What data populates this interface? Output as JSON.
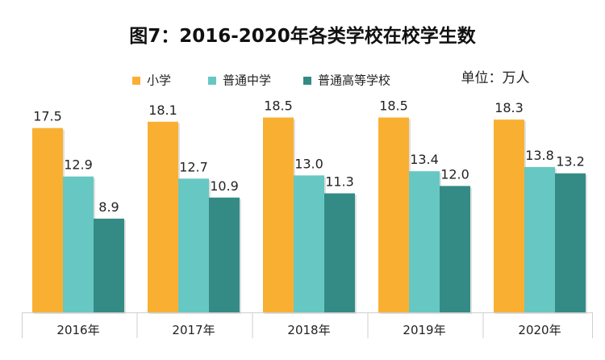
{
  "chart_data": {
    "type": "bar",
    "title": "图7：2016-2020年各类学校在校学生数",
    "unit_label": "单位：万人",
    "xlabel": "",
    "ylabel": "",
    "categories": [
      "2016年",
      "2017年",
      "2018年",
      "2019年",
      "2020年"
    ],
    "series": [
      {
        "name": "小学",
        "color": "#F9B032",
        "values": [
          17.5,
          18.1,
          18.5,
          18.5,
          18.3
        ]
      },
      {
        "name": "普通中学",
        "color": "#67C7C3",
        "values": [
          12.9,
          12.7,
          13.0,
          13.4,
          13.8
        ]
      },
      {
        "name": "普通高等学校",
        "color": "#348B85",
        "values": [
          8.9,
          10.9,
          11.3,
          12.0,
          13.2
        ]
      }
    ],
    "ylim": [
      0,
      20
    ],
    "grid": false,
    "legend_position": "top-center",
    "value_labels": true
  }
}
